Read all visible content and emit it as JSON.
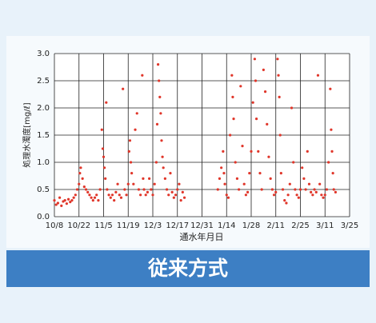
{
  "chart_data": {
    "type": "scatter",
    "title": "従来方式",
    "xlabel": "通水年月日",
    "ylabel": "処理水濁度[mg/ℓ]",
    "color": "#e0362a",
    "grid": true,
    "xlim": [
      0,
      168
    ],
    "xticks": [
      {
        "value": 0,
        "label": "10/8"
      },
      {
        "value": 14,
        "label": "10/22"
      },
      {
        "value": 28,
        "label": "11/5"
      },
      {
        "value": 42,
        "label": "11/19"
      },
      {
        "value": 56,
        "label": "12/3"
      },
      {
        "value": 70,
        "label": "12/17"
      },
      {
        "value": 84,
        "label": "12/31"
      },
      {
        "value": 98,
        "label": "1/14"
      },
      {
        "value": 112,
        "label": "1/28"
      },
      {
        "value": 126,
        "label": "2/11"
      },
      {
        "value": 140,
        "label": "2/25"
      },
      {
        "value": 154,
        "label": "3/11"
      },
      {
        "value": 168,
        "label": "3/25"
      }
    ],
    "ylim": [
      0,
      3
    ],
    "yticks": [
      {
        "value": 0,
        "label": "0.0"
      },
      {
        "value": 0.5,
        "label": "0.5"
      },
      {
        "value": 1,
        "label": "1.0"
      },
      {
        "value": 1.5,
        "label": "1.5"
      },
      {
        "value": 2,
        "label": "2.0"
      },
      {
        "value": 2.5,
        "label": "2.5"
      },
      {
        "value": 3,
        "label": "3.0"
      }
    ],
    "x": [
      0,
      1,
      2,
      3,
      4,
      5,
      6,
      7,
      8,
      9,
      10,
      11,
      12,
      13,
      14,
      14.5,
      15,
      16,
      17,
      18,
      19,
      20,
      21,
      22,
      23,
      24,
      25,
      26,
      27,
      27.5,
      28,
      28.5,
      29,
      29.5,
      30,
      31,
      32,
      33,
      34,
      35,
      36,
      37,
      38,
      39,
      40,
      41,
      42,
      42.5,
      43,
      43.5,
      44,
      45,
      46,
      47,
      48,
      49,
      50,
      50.5,
      51,
      52,
      53,
      54,
      55,
      56,
      57,
      58,
      58.5,
      59,
      59.5,
      60,
      60.5,
      61,
      61.5,
      62,
      63,
      64,
      65,
      66,
      67,
      68,
      69,
      70,
      71,
      72,
      73,
      74,
      93,
      94,
      95,
      96,
      96.5,
      97,
      98,
      99,
      100,
      101,
      101.5,
      102,
      103,
      104,
      105,
      106,
      107,
      108,
      109,
      110,
      111,
      112,
      113,
      114,
      114.5,
      115,
      116,
      117,
      118,
      119,
      120,
      121,
      122,
      123,
      124,
      125,
      126,
      127,
      127.5,
      128,
      128.5,
      129,
      130,
      131,
      132,
      133,
      134,
      135,
      136,
      137,
      138,
      139,
      140,
      141,
      142,
      143,
      144,
      145,
      146,
      147,
      148,
      149,
      150,
      151,
      152,
      153,
      154,
      155,
      156,
      157,
      157.5,
      158,
      158.5,
      159,
      160
    ],
    "y": [
      0.3,
      0.22,
      0.25,
      0.35,
      0.2,
      0.28,
      0.3,
      0.24,
      0.32,
      0.27,
      0.3,
      0.35,
      0.4,
      0.5,
      0.6,
      0.8,
      0.9,
      0.7,
      0.55,
      0.5,
      0.45,
      0.4,
      0.35,
      0.3,
      0.35,
      0.4,
      0.3,
      0.5,
      1.6,
      1.25,
      1.1,
      0.9,
      0.7,
      2.1,
      0.5,
      0.4,
      0.35,
      0.4,
      0.3,
      0.45,
      0.6,
      0.4,
      0.35,
      2.35,
      0.5,
      0.4,
      0.6,
      1.2,
      1.4,
      1.0,
      0.8,
      0.6,
      1.6,
      1.9,
      0.5,
      0.4,
      2.6,
      0.7,
      0.5,
      0.4,
      0.45,
      0.7,
      0.5,
      0.4,
      0.6,
      1.0,
      1.7,
      2.8,
      2.5,
      2.2,
      1.9,
      1.4,
      1.1,
      0.9,
      0.7,
      0.5,
      0.4,
      0.8,
      0.45,
      0.35,
      0.4,
      0.5,
      0.6,
      0.3,
      0.45,
      0.35,
      0.5,
      0.7,
      0.9,
      1.2,
      0.8,
      0.6,
      0.4,
      0.35,
      1.5,
      2.6,
      2.2,
      1.8,
      1.0,
      0.7,
      0.5,
      2.4,
      1.3,
      0.6,
      0.4,
      0.45,
      0.8,
      1.2,
      2.1,
      2.9,
      2.5,
      1.8,
      1.2,
      0.8,
      0.5,
      2.7,
      2.3,
      1.7,
      1.1,
      0.7,
      0.5,
      0.4,
      0.45,
      2.9,
      2.6,
      2.2,
      1.5,
      0.8,
      0.5,
      0.3,
      0.25,
      0.4,
      0.6,
      2.0,
      1.0,
      0.5,
      0.4,
      0.35,
      0.5,
      0.9,
      0.7,
      0.5,
      1.2,
      0.6,
      0.45,
      0.4,
      0.5,
      0.45,
      2.6,
      0.6,
      0.4,
      0.35,
      0.4,
      0.5,
      1.0,
      2.35,
      1.6,
      1.2,
      0.8,
      0.5,
      0.45
    ]
  }
}
